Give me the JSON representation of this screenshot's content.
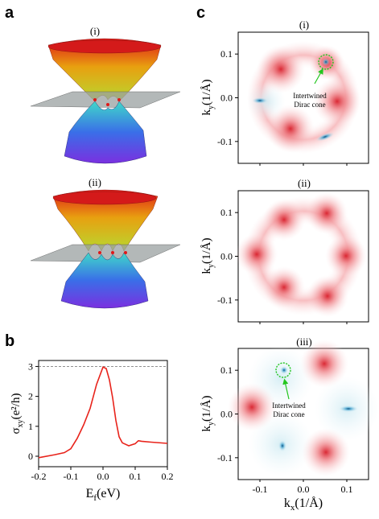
{
  "panels": {
    "a": "a",
    "b": "b",
    "c": "c"
  },
  "panel_a": {
    "sub_i": "(i)",
    "sub_ii": "(ii)"
  },
  "panel_b": {
    "ylabel": "σxy(e²/h)",
    "xlabel": "Ef(eV)",
    "yticks": [
      "0",
      "1",
      "2",
      "3"
    ],
    "xticks": [
      "-0.2",
      "-0.1",
      "0.0",
      "0.1",
      "0.2"
    ]
  },
  "panel_c": {
    "sub_i": "(i)",
    "sub_ii": "(ii)",
    "sub_iii": "(iii)",
    "ylabel": "ky(1/Å)",
    "xlabel": "kx(1/Å)",
    "yticks": [
      "0.1",
      "0.0",
      "-0.1"
    ],
    "xticks": [
      "-0.1",
      "0.0",
      "0.1"
    ],
    "annotation_line1": "Intertwined",
    "annotation_line2": "Dirac cone"
  },
  "chart_data": [
    {
      "type": "line",
      "x": [
        -0.2,
        -0.15,
        -0.12,
        -0.1,
        -0.08,
        -0.06,
        -0.04,
        -0.02,
        0.0,
        0.01,
        0.02,
        0.03,
        0.04,
        0.05,
        0.06,
        0.08,
        0.1,
        0.11,
        0.12,
        0.15,
        0.2
      ],
      "y": [
        -0.05,
        0.05,
        0.12,
        0.25,
        0.6,
        1.05,
        1.6,
        2.4,
        2.98,
        2.93,
        2.55,
        1.95,
        1.2,
        0.65,
        0.45,
        0.35,
        0.42,
        0.52,
        0.5,
        0.47,
        0.43
      ],
      "reference_line": 3,
      "xlim": [
        -0.2,
        0.2
      ],
      "ylim": [
        -0.35,
        3.2
      ],
      "xlabel": "Ef(eV)",
      "ylabel": "σxy(e²/h)",
      "line_color": "#e8231b"
    }
  ]
}
